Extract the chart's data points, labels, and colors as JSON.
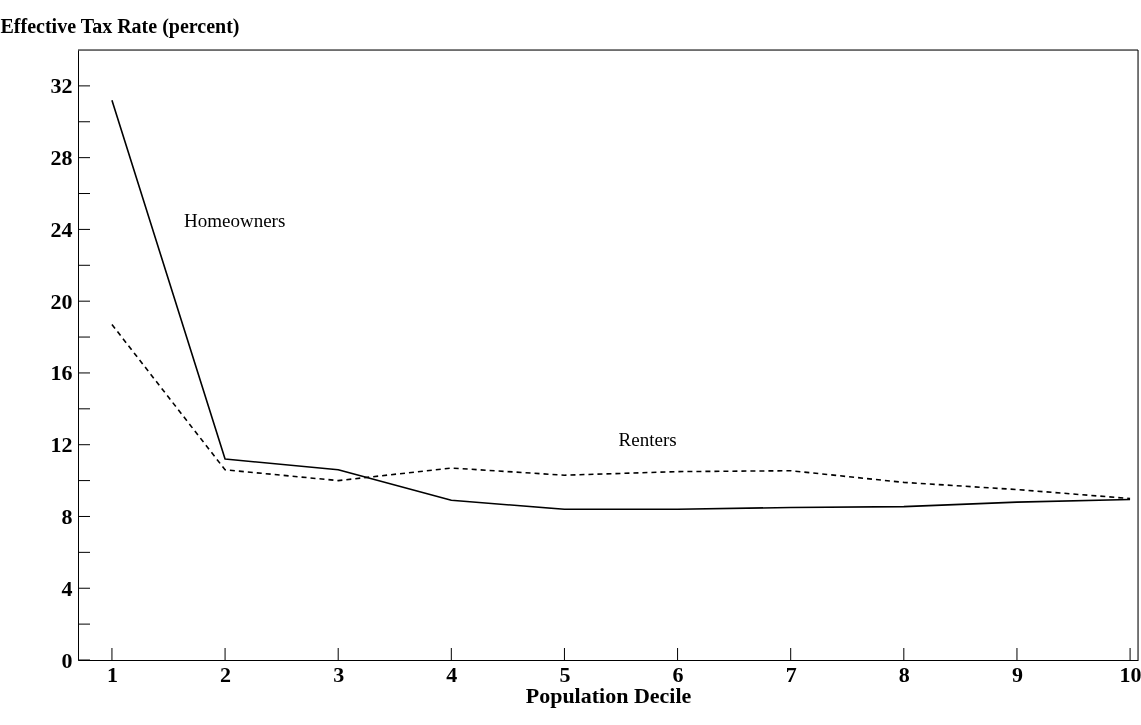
{
  "chart_data": {
    "type": "line",
    "xlabel": "Population Decile",
    "ylabel": "Effective Tax Rate (percent)",
    "x": [
      1,
      2,
      3,
      4,
      5,
      6,
      7,
      8,
      9,
      10
    ],
    "series": [
      {
        "name": "Homeowners",
        "color": "#000000",
        "line_style": "solid",
        "values": [
          31.2,
          11.2,
          10.6,
          8.9,
          8.4,
          8.4,
          8.5,
          8.55,
          8.8,
          8.95
        ]
      },
      {
        "name": "Renters",
        "color": "#000000",
        "line_style": "dashed",
        "values": [
          18.7,
          10.6,
          10.0,
          10.7,
          10.3,
          10.5,
          10.55,
          9.9,
          9.5,
          9.0
        ]
      }
    ],
    "xlim": [
      0.7,
      10.07
    ],
    "xticks": [
      1,
      2,
      3,
      4,
      5,
      6,
      7,
      8,
      9,
      10
    ],
    "ylim": [
      0,
      34
    ],
    "yticks": [
      0,
      {
        "value": 2,
        "label": null
      },
      4,
      {
        "value": 6,
        "label": null
      },
      8,
      {
        "value": 10,
        "label": null
      },
      12,
      {
        "value": 14,
        "label": null
      },
      16,
      {
        "value": 18,
        "label": null
      },
      20,
      {
        "value": 22,
        "label": null
      },
      24,
      {
        "value": 26,
        "label": null
      },
      28,
      {
        "value": 30,
        "label": null
      },
      32
    ],
    "grid": false
  }
}
